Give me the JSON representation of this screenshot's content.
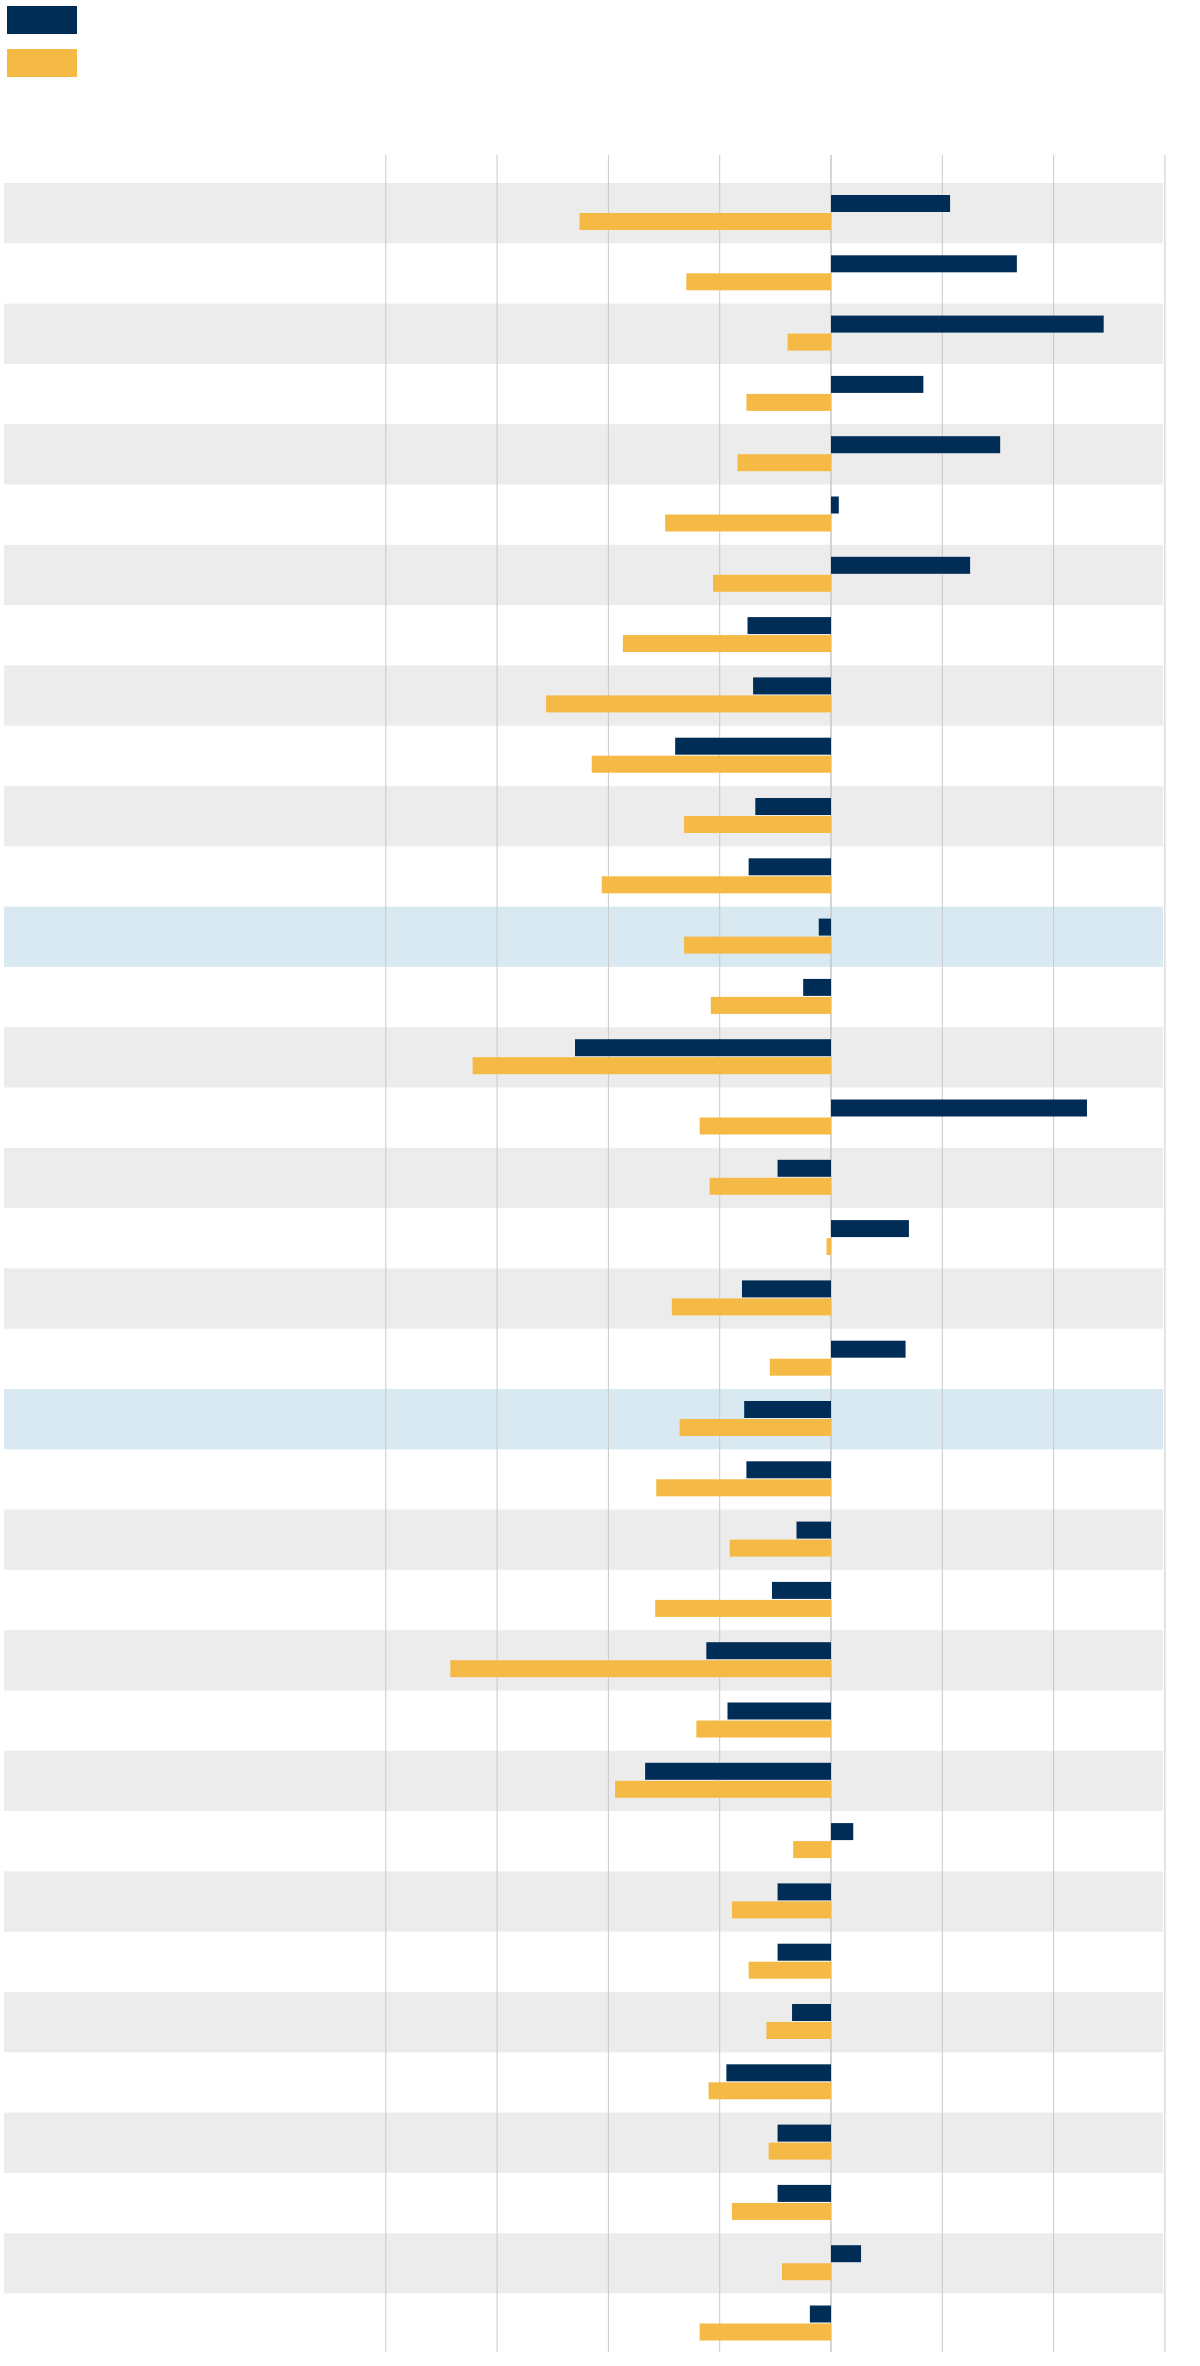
{
  "chart_data": {
    "type": "bar",
    "orientation": "horizontal",
    "title": "",
    "xlabel": "",
    "ylabel": "",
    "xlim": [
      -40,
      30
    ],
    "grid": true,
    "legend_position": "top-left",
    "colors": {
      "series_1": "#002d56",
      "series_2": "#f5b945",
      "row_band": "#ececec",
      "row_highlight": "#d9e9f2",
      "grid": "#c8c8c8"
    },
    "highlight_rows": [
      12,
      20
    ],
    "series": [
      {
        "values": [
          10.7,
          16.7,
          24.5,
          8.3,
          15.2,
          0.7,
          12.5,
          -7.5,
          -7.0,
          -14.0,
          -6.8,
          -7.4,
          -1.1,
          -2.5,
          -23.0,
          23.0,
          -4.8,
          7.0,
          -8.0,
          6.7,
          -7.8,
          -7.6,
          -3.1,
          -5.3,
          -11.2,
          -9.3,
          -16.7,
          2.0,
          -4.8,
          -4.8,
          -3.5,
          -9.4,
          -4.8,
          -4.8,
          2.7,
          -1.9
        ]
      },
      {
        "values": [
          -22.6,
          -13.0,
          -3.9,
          -7.6,
          -8.4,
          -14.9,
          -10.6,
          -18.7,
          -25.6,
          -21.5,
          -13.2,
          -20.6,
          -13.2,
          -10.8,
          -32.2,
          -11.8,
          -10.9,
          -0.4,
          -14.3,
          -5.5,
          -13.6,
          -15.7,
          -9.1,
          -15.8,
          -34.2,
          -12.1,
          -19.4,
          -3.4,
          -8.9,
          -7.4,
          -5.8,
          -11.0,
          -5.6,
          -8.9,
          -4.4,
          -11.8
        ]
      }
    ]
  }
}
